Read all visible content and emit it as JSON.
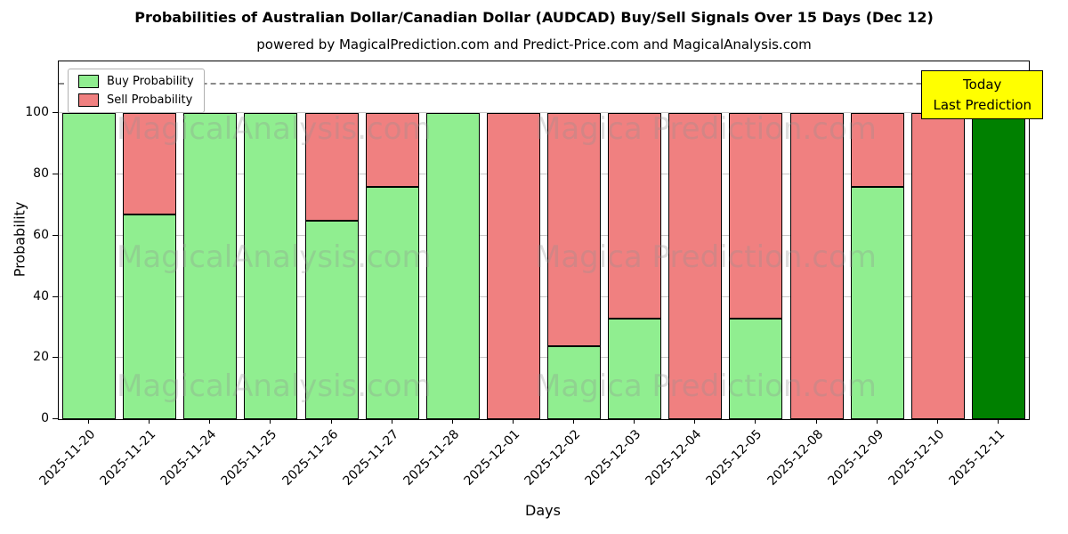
{
  "chart_data": {
    "type": "bar",
    "stacked": true,
    "title": "Probabilities of Australian Dollar/Canadian Dollar (AUDCAD) Buy/Sell Signals Over 15 Days (Dec 12)",
    "subtitle": "powered by MagicalPrediction.com and Predict-Price.com and MagicalAnalysis.com",
    "xlabel": "Days",
    "ylabel": "Probability",
    "ylim": [
      0,
      117
    ],
    "yticks": [
      0,
      20,
      40,
      60,
      80,
      100
    ],
    "grid": true,
    "dashed_line_y": 110,
    "categories": [
      "2025-11-20",
      "2025-11-21",
      "2025-11-24",
      "2025-11-25",
      "2025-11-26",
      "2025-11-27",
      "2025-11-28",
      "2025-12-01",
      "2025-12-02",
      "2025-12-03",
      "2025-12-04",
      "2025-12-05",
      "2025-12-08",
      "2025-12-09",
      "2025-12-10",
      "2025-12-11"
    ],
    "series": [
      {
        "name": "Buy Probability",
        "color": "#90ee90",
        "values": [
          100,
          67,
          100,
          100,
          65,
          76,
          100,
          0,
          24,
          33,
          0,
          33,
          0,
          76,
          0,
          100
        ]
      },
      {
        "name": "Sell Probability",
        "color": "#f08080",
        "values": [
          0,
          33,
          0,
          0,
          35,
          24,
          0,
          100,
          76,
          67,
          100,
          67,
          100,
          24,
          100,
          0
        ]
      }
    ],
    "bar_edge_color": "#000000",
    "today_bar": {
      "category": "2025-12-11",
      "color": "#008000"
    },
    "legend_position": "upper-left",
    "annotation": {
      "lines": [
        "Today",
        "Last Prediction"
      ],
      "bg_color": "#ffff00"
    },
    "watermarks": [
      "MagicalAnalysis.com",
      "Magica Prediction.com"
    ]
  }
}
